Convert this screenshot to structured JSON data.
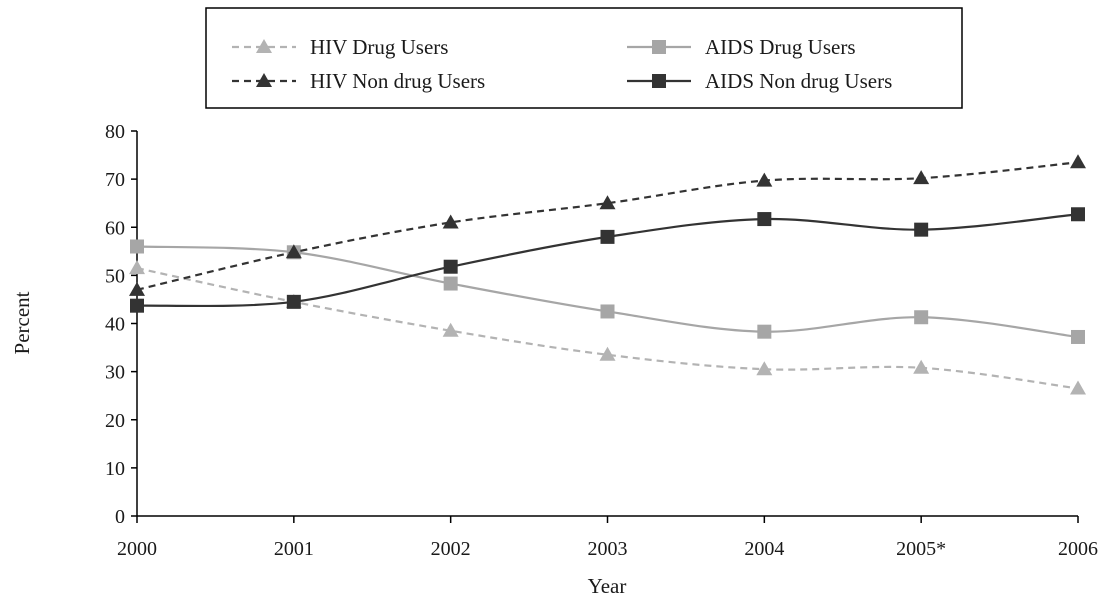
{
  "chart_data": {
    "type": "line",
    "title": "",
    "xlabel": "Year",
    "ylabel": "Percent",
    "categories": [
      "2000",
      "2001",
      "2002",
      "2003",
      "2004",
      "2005*",
      "2006"
    ],
    "ylim": [
      0,
      80
    ],
    "yticks": [
      "0",
      "10",
      "20",
      "30",
      "40",
      "50",
      "60",
      "70",
      "80"
    ],
    "grid": false,
    "legend_position": "top",
    "series": [
      {
        "name": "HIV Drug Users",
        "values": [
          51.5,
          44.5,
          38.5,
          33.5,
          30.5,
          30.8,
          26.5
        ],
        "color": "#b3b3b3",
        "dash": "dashed",
        "marker": "triangle"
      },
      {
        "name": "AIDS Drug Users",
        "values": [
          56.0,
          54.8,
          48.3,
          42.5,
          38.3,
          41.3,
          37.2
        ],
        "color": "#a6a6a6",
        "dash": "solid",
        "marker": "square"
      },
      {
        "name": "HIV Non drug Users",
        "values": [
          47.0,
          54.8,
          61.0,
          65.0,
          69.7,
          70.2,
          73.5
        ],
        "color": "#333333",
        "dash": "dashed",
        "marker": "triangle"
      },
      {
        "name": "AIDS Non drug Users",
        "values": [
          43.7,
          44.5,
          51.8,
          58.0,
          61.7,
          59.5,
          62.7
        ],
        "color": "#333333",
        "dash": "solid",
        "marker": "square"
      }
    ]
  }
}
